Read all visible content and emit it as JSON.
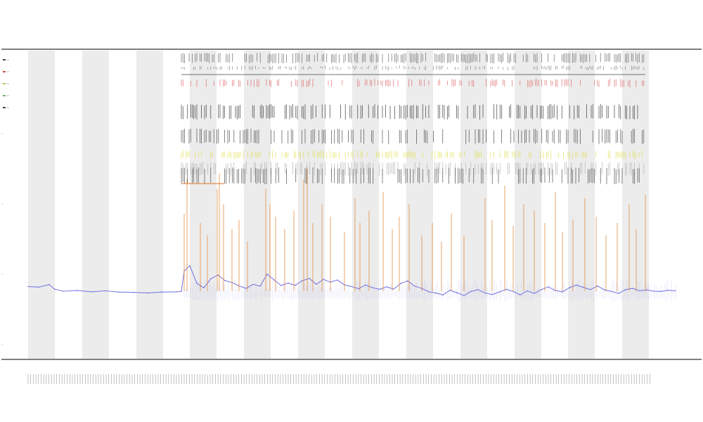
{
  "chart_data": {
    "type": "line",
    "title": "",
    "subtitle_lines": [
      "",
      ""
    ],
    "xlabel": "",
    "ylabel": "",
    "grid": false,
    "legend_position": "top-left",
    "x_domain": [
      0,
      1000
    ],
    "y_domain": [
      0,
      100
    ],
    "shaded_bands": [
      [
        40,
        78
      ],
      [
        117,
        155
      ],
      [
        194,
        232
      ],
      [
        270,
        308
      ],
      [
        347,
        385
      ],
      [
        424,
        462
      ],
      [
        501,
        539
      ],
      [
        578,
        616
      ],
      [
        655,
        693
      ],
      [
        732,
        770
      ],
      [
        808,
        846
      ],
      [
        885,
        923
      ]
    ],
    "series": [
      {
        "name": "",
        "role": "baseline",
        "color": "#6a6ae0",
        "values": [
          [
            40,
            23.5
          ],
          [
            55,
            23.3
          ],
          [
            70,
            24.1
          ],
          [
            78,
            22.6
          ],
          [
            90,
            22.0
          ],
          [
            110,
            22.2
          ],
          [
            130,
            21.8
          ],
          [
            150,
            22.1
          ],
          [
            170,
            21.7
          ],
          [
            190,
            21.6
          ],
          [
            210,
            21.4
          ],
          [
            230,
            21.7
          ],
          [
            250,
            21.8
          ],
          [
            258,
            21.9
          ],
          [
            262,
            28.5
          ],
          [
            270,
            30.2
          ],
          [
            280,
            24.5
          ],
          [
            290,
            23.1
          ],
          [
            300,
            26.0
          ],
          [
            310,
            27.2
          ],
          [
            320,
            25.4
          ],
          [
            330,
            24.8
          ],
          [
            340,
            23.7
          ],
          [
            350,
            22.9
          ],
          [
            360,
            24.2
          ],
          [
            370,
            23.6
          ],
          [
            380,
            27.5
          ],
          [
            390,
            25.6
          ],
          [
            400,
            23.8
          ],
          [
            410,
            24.6
          ],
          [
            420,
            23.9
          ],
          [
            430,
            25.4
          ],
          [
            440,
            26.1
          ],
          [
            450,
            24.2
          ],
          [
            460,
            25.8
          ],
          [
            470,
            24.9
          ],
          [
            480,
            25.6
          ],
          [
            490,
            24.0
          ],
          [
            500,
            23.5
          ],
          [
            510,
            22.8
          ],
          [
            520,
            24.0
          ],
          [
            530,
            23.1
          ],
          [
            540,
            22.6
          ],
          [
            550,
            23.4
          ],
          [
            560,
            22.7
          ],
          [
            570,
            24.5
          ],
          [
            580,
            25.3
          ],
          [
            590,
            23.6
          ],
          [
            600,
            22.9
          ],
          [
            610,
            21.8
          ],
          [
            620,
            21.4
          ],
          [
            630,
            20.8
          ],
          [
            640,
            22.3
          ],
          [
            650,
            21.5
          ],
          [
            660,
            20.6
          ],
          [
            670,
            21.9
          ],
          [
            680,
            22.5
          ],
          [
            690,
            21.4
          ],
          [
            700,
            20.9
          ],
          [
            710,
            21.7
          ],
          [
            720,
            22.6
          ],
          [
            730,
            21.9
          ],
          [
            740,
            20.8
          ],
          [
            750,
            22.1
          ],
          [
            760,
            21.3
          ],
          [
            770,
            22.5
          ],
          [
            780,
            23.4
          ],
          [
            790,
            22.2
          ],
          [
            800,
            21.8
          ],
          [
            810,
            23.1
          ],
          [
            820,
            24.0
          ],
          [
            830,
            23.2
          ],
          [
            840,
            22.5
          ],
          [
            850,
            23.7
          ],
          [
            860,
            22.4
          ],
          [
            870,
            21.9
          ],
          [
            880,
            21.3
          ],
          [
            890,
            22.5
          ],
          [
            900,
            22.9
          ],
          [
            910,
            22.1
          ],
          [
            920,
            22.4
          ],
          [
            930,
            22.0
          ],
          [
            940,
            21.9
          ],
          [
            950,
            22.3
          ],
          [
            961,
            22.1
          ]
        ]
      },
      {
        "name": "",
        "role": "spikes",
        "color": "#e08a3c",
        "values": [
          [
            262,
            47
          ],
          [
            266,
            58
          ],
          [
            285,
            44
          ],
          [
            295,
            40
          ],
          [
            309,
            55
          ],
          [
            312,
            60
          ],
          [
            318,
            50
          ],
          [
            330,
            42
          ],
          [
            340,
            45
          ],
          [
            352,
            38
          ],
          [
            378,
            55
          ],
          [
            384,
            50
          ],
          [
            392,
            46
          ],
          [
            405,
            42
          ],
          [
            418,
            48
          ],
          [
            432,
            58
          ],
          [
            437,
            62
          ],
          [
            445,
            44
          ],
          [
            458,
            50
          ],
          [
            470,
            46
          ],
          [
            490,
            41
          ],
          [
            505,
            52
          ],
          [
            512,
            44
          ],
          [
            525,
            48
          ],
          [
            545,
            54
          ],
          [
            558,
            42
          ],
          [
            568,
            46
          ],
          [
            582,
            50
          ],
          [
            600,
            40
          ],
          [
            615,
            44
          ],
          [
            628,
            38
          ],
          [
            642,
            47
          ],
          [
            660,
            40
          ],
          [
            690,
            52
          ],
          [
            700,
            45
          ],
          [
            718,
            56
          ],
          [
            730,
            43
          ],
          [
            745,
            50
          ],
          [
            760,
            48
          ],
          [
            775,
            44
          ],
          [
            790,
            54
          ],
          [
            800,
            41
          ],
          [
            815,
            45
          ],
          [
            832,
            52
          ],
          [
            848,
            46
          ],
          [
            862,
            40
          ],
          [
            878,
            44
          ],
          [
            895,
            50
          ],
          [
            905,
            42
          ],
          [
            918,
            53
          ]
        ]
      }
    ]
  },
  "footer_label": ""
}
